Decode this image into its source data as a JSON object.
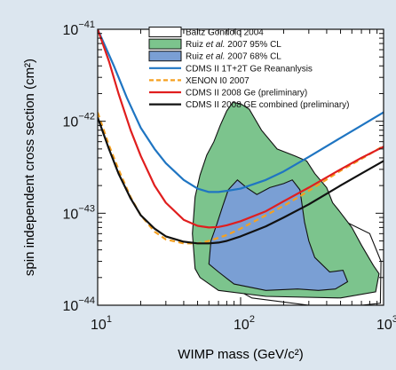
{
  "chart_data": {
    "type": "line",
    "xlabel": "WIMP mass (GeV/c²)",
    "ylabel": "spin independent cross section (cm²)",
    "x_scale": "log",
    "y_scale": "log",
    "xlim": [
      10,
      1000
    ],
    "ylim": [
      1e-44,
      1e-41
    ],
    "x_ticks": [
      {
        "value": 10,
        "base": "10",
        "exp": "1"
      },
      {
        "value": 100,
        "base": "10",
        "exp": "2"
      },
      {
        "value": 1000,
        "base": "10",
        "exp": "3"
      }
    ],
    "y_ticks": [
      {
        "value": 1e-44,
        "base": "10",
        "exp": "−44"
      },
      {
        "value": 1e-43,
        "base": "10",
        "exp": "−43"
      },
      {
        "value": 1e-42,
        "base": "10",
        "exp": "−42"
      },
      {
        "value": 1e-41,
        "base": "10",
        "exp": "−41"
      }
    ],
    "legend_position": "top-right",
    "regions": [
      {
        "name_parts": [
          {
            "t": "Baltz Gondolo 2004",
            "i": false
          }
        ],
        "fill": "#ffffff",
        "stroke": "#111111",
        "polygon": [
          [
            55,
            2.5e-44
          ],
          [
            62,
            2.2e-44
          ],
          [
            80,
            1.7e-44
          ],
          [
            120,
            1.2e-44
          ],
          [
            300,
            1e-44
          ],
          [
            700,
            1e-44
          ],
          [
            950,
            1.05e-44
          ],
          [
            960,
            3e-44
          ],
          [
            800,
            6e-44
          ],
          [
            550,
            8e-44
          ],
          [
            350,
            6e-44
          ],
          [
            300,
            9e-44
          ],
          [
            200,
            1.3e-43
          ],
          [
            130,
            1.5e-43
          ],
          [
            95,
            1.2e-43
          ],
          [
            80,
            1.5e-43
          ],
          [
            78,
            3.5e-43
          ],
          [
            72,
            3e-43
          ],
          [
            68,
            4.6e-44
          ],
          [
            60,
            4.6e-44
          ],
          [
            55,
            4.5e-44
          ]
        ]
      },
      {
        "name_parts": [
          {
            "t": "Ruiz ",
            "i": false
          },
          {
            "t": "et al.",
            "i": true
          },
          {
            "t": " 2007 95% CL",
            "i": false
          }
        ],
        "fill": "#7cc48d",
        "stroke": "#111111",
        "polygon": [
          [
            48,
            2.5e-44
          ],
          [
            52,
            2e-44
          ],
          [
            70,
            1.45e-44
          ],
          [
            150,
            1.25e-44
          ],
          [
            500,
            1.2e-44
          ],
          [
            880,
            1.4e-44
          ],
          [
            930,
            2.2e-44
          ],
          [
            850,
            2.7e-44
          ],
          [
            700,
            4.5e-44
          ],
          [
            600,
            7e-44
          ],
          [
            480,
            1.1e-43
          ],
          [
            440,
            1.3e-43
          ],
          [
            400,
            1.9e-43
          ],
          [
            330,
            2.7e-43
          ],
          [
            290,
            3.7e-43
          ],
          [
            240,
            4.2e-43
          ],
          [
            180,
            5e-43
          ],
          [
            140,
            8e-43
          ],
          [
            115,
            1.35e-42
          ],
          [
            100,
            1.55e-42
          ],
          [
            88,
            1.6e-42
          ],
          [
            80,
            1.3e-42
          ],
          [
            72,
            9e-43
          ],
          [
            65,
            6e-43
          ],
          [
            58,
            4.3e-43
          ],
          [
            52,
            2.6e-43
          ],
          [
            48,
            1.5e-43
          ],
          [
            46,
            6e-44
          ]
        ]
      },
      {
        "name_parts": [
          {
            "t": "Ruiz ",
            "i": false
          },
          {
            "t": "et al.",
            "i": true
          },
          {
            "t": " 2007 68% CL",
            "i": false
          }
        ],
        "fill": "#7a9fd4",
        "stroke": "#111111",
        "polygon": [
          [
            60,
            2.8e-44
          ],
          [
            70,
            2.3e-44
          ],
          [
            90,
            1.7e-44
          ],
          [
            150,
            1.45e-44
          ],
          [
            250,
            1.5e-44
          ],
          [
            350,
            1.45e-44
          ],
          [
            460,
            1.5e-44
          ],
          [
            560,
            1.8e-44
          ],
          [
            520,
            2.4e-44
          ],
          [
            420,
            2.3e-44
          ],
          [
            330,
            3.3e-44
          ],
          [
            300,
            5e-44
          ],
          [
            280,
            8e-44
          ],
          [
            260,
            1.8e-43
          ],
          [
            230,
            2.3e-43
          ],
          [
            200,
            2.1e-43
          ],
          [
            160,
            1.9e-43
          ],
          [
            130,
            1.6e-43
          ],
          [
            110,
            1.9e-43
          ],
          [
            95,
            2.3e-43
          ],
          [
            82,
            1.8e-43
          ],
          [
            75,
            1.2e-43
          ],
          [
            68,
            7.5e-44
          ],
          [
            62,
            5e-44
          ]
        ]
      }
    ],
    "series": [
      {
        "name": "CDMS II 1T+2T Ge Reananlysis",
        "color": "#1f75c2",
        "dashed": false,
        "x": [
          10,
          13,
          16,
          20,
          25,
          30,
          40,
          50,
          60,
          70,
          80,
          100,
          150,
          200,
          300,
          500,
          700,
          1000
        ],
        "y": [
          1e-41,
          4e-42,
          1.8e-42,
          8.5e-43,
          5e-43,
          3.5e-43,
          2.3e-43,
          1.85e-43,
          1.7e-43,
          1.7e-43,
          1.75e-43,
          1.85e-43,
          2.3e-43,
          2.85e-43,
          4.1e-43,
          6.6e-43,
          9e-43,
          1.25e-42
        ]
      },
      {
        "name": "XENON I0 2007",
        "color": "#f5a020",
        "dashed": true,
        "x": [
          10,
          12,
          14,
          17,
          20,
          25,
          30,
          40,
          50,
          60,
          80,
          100,
          150,
          200,
          300,
          500,
          700,
          1000
        ],
        "y": [
          1.25e-42,
          5.5e-43,
          3e-43,
          1.5e-43,
          9.5e-44,
          6.3e-44,
          5.2e-44,
          4.7e-44,
          4.7e-44,
          5e-44,
          5.8e-44,
          6.8e-44,
          9.5e-44,
          1.2e-43,
          1.75e-43,
          2.9e-43,
          3.9e-43,
          5.4e-43
        ]
      },
      {
        "name": "CDMS II 2008 Ge (preliminary)",
        "color": "#e01e1e",
        "dashed": false,
        "x": [
          10,
          12,
          14,
          17,
          20,
          25,
          30,
          40,
          50,
          60,
          70,
          80,
          100,
          150,
          200,
          300,
          500,
          700,
          1000
        ],
        "y": [
          1e-41,
          4.5e-42,
          2e-42,
          8e-43,
          4.2e-43,
          2e-43,
          1.3e-43,
          8.5e-44,
          7.3e-44,
          7e-44,
          7.1e-44,
          7.4e-44,
          8.2e-44,
          1.05e-43,
          1.35e-43,
          1.9e-43,
          3e-43,
          4e-43,
          5.3e-43
        ]
      },
      {
        "name": "CDMS II 2008 GE combined (preliminary)",
        "color": "#111111",
        "dashed": false,
        "x": [
          10,
          12,
          14,
          17,
          20,
          25,
          30,
          40,
          50,
          60,
          70,
          80,
          100,
          150,
          200,
          300,
          500,
          700,
          1000
        ],
        "y": [
          1.1e-42,
          5e-43,
          2.7e-43,
          1.45e-43,
          9.5e-44,
          6.8e-44,
          5.6e-44,
          4.9e-44,
          4.7e-44,
          4.7e-44,
          4.8e-44,
          5e-44,
          5.6e-44,
          7.2e-44,
          9e-44,
          1.25e-43,
          2e-43,
          2.7e-43,
          3.7e-43
        ]
      }
    ]
  }
}
